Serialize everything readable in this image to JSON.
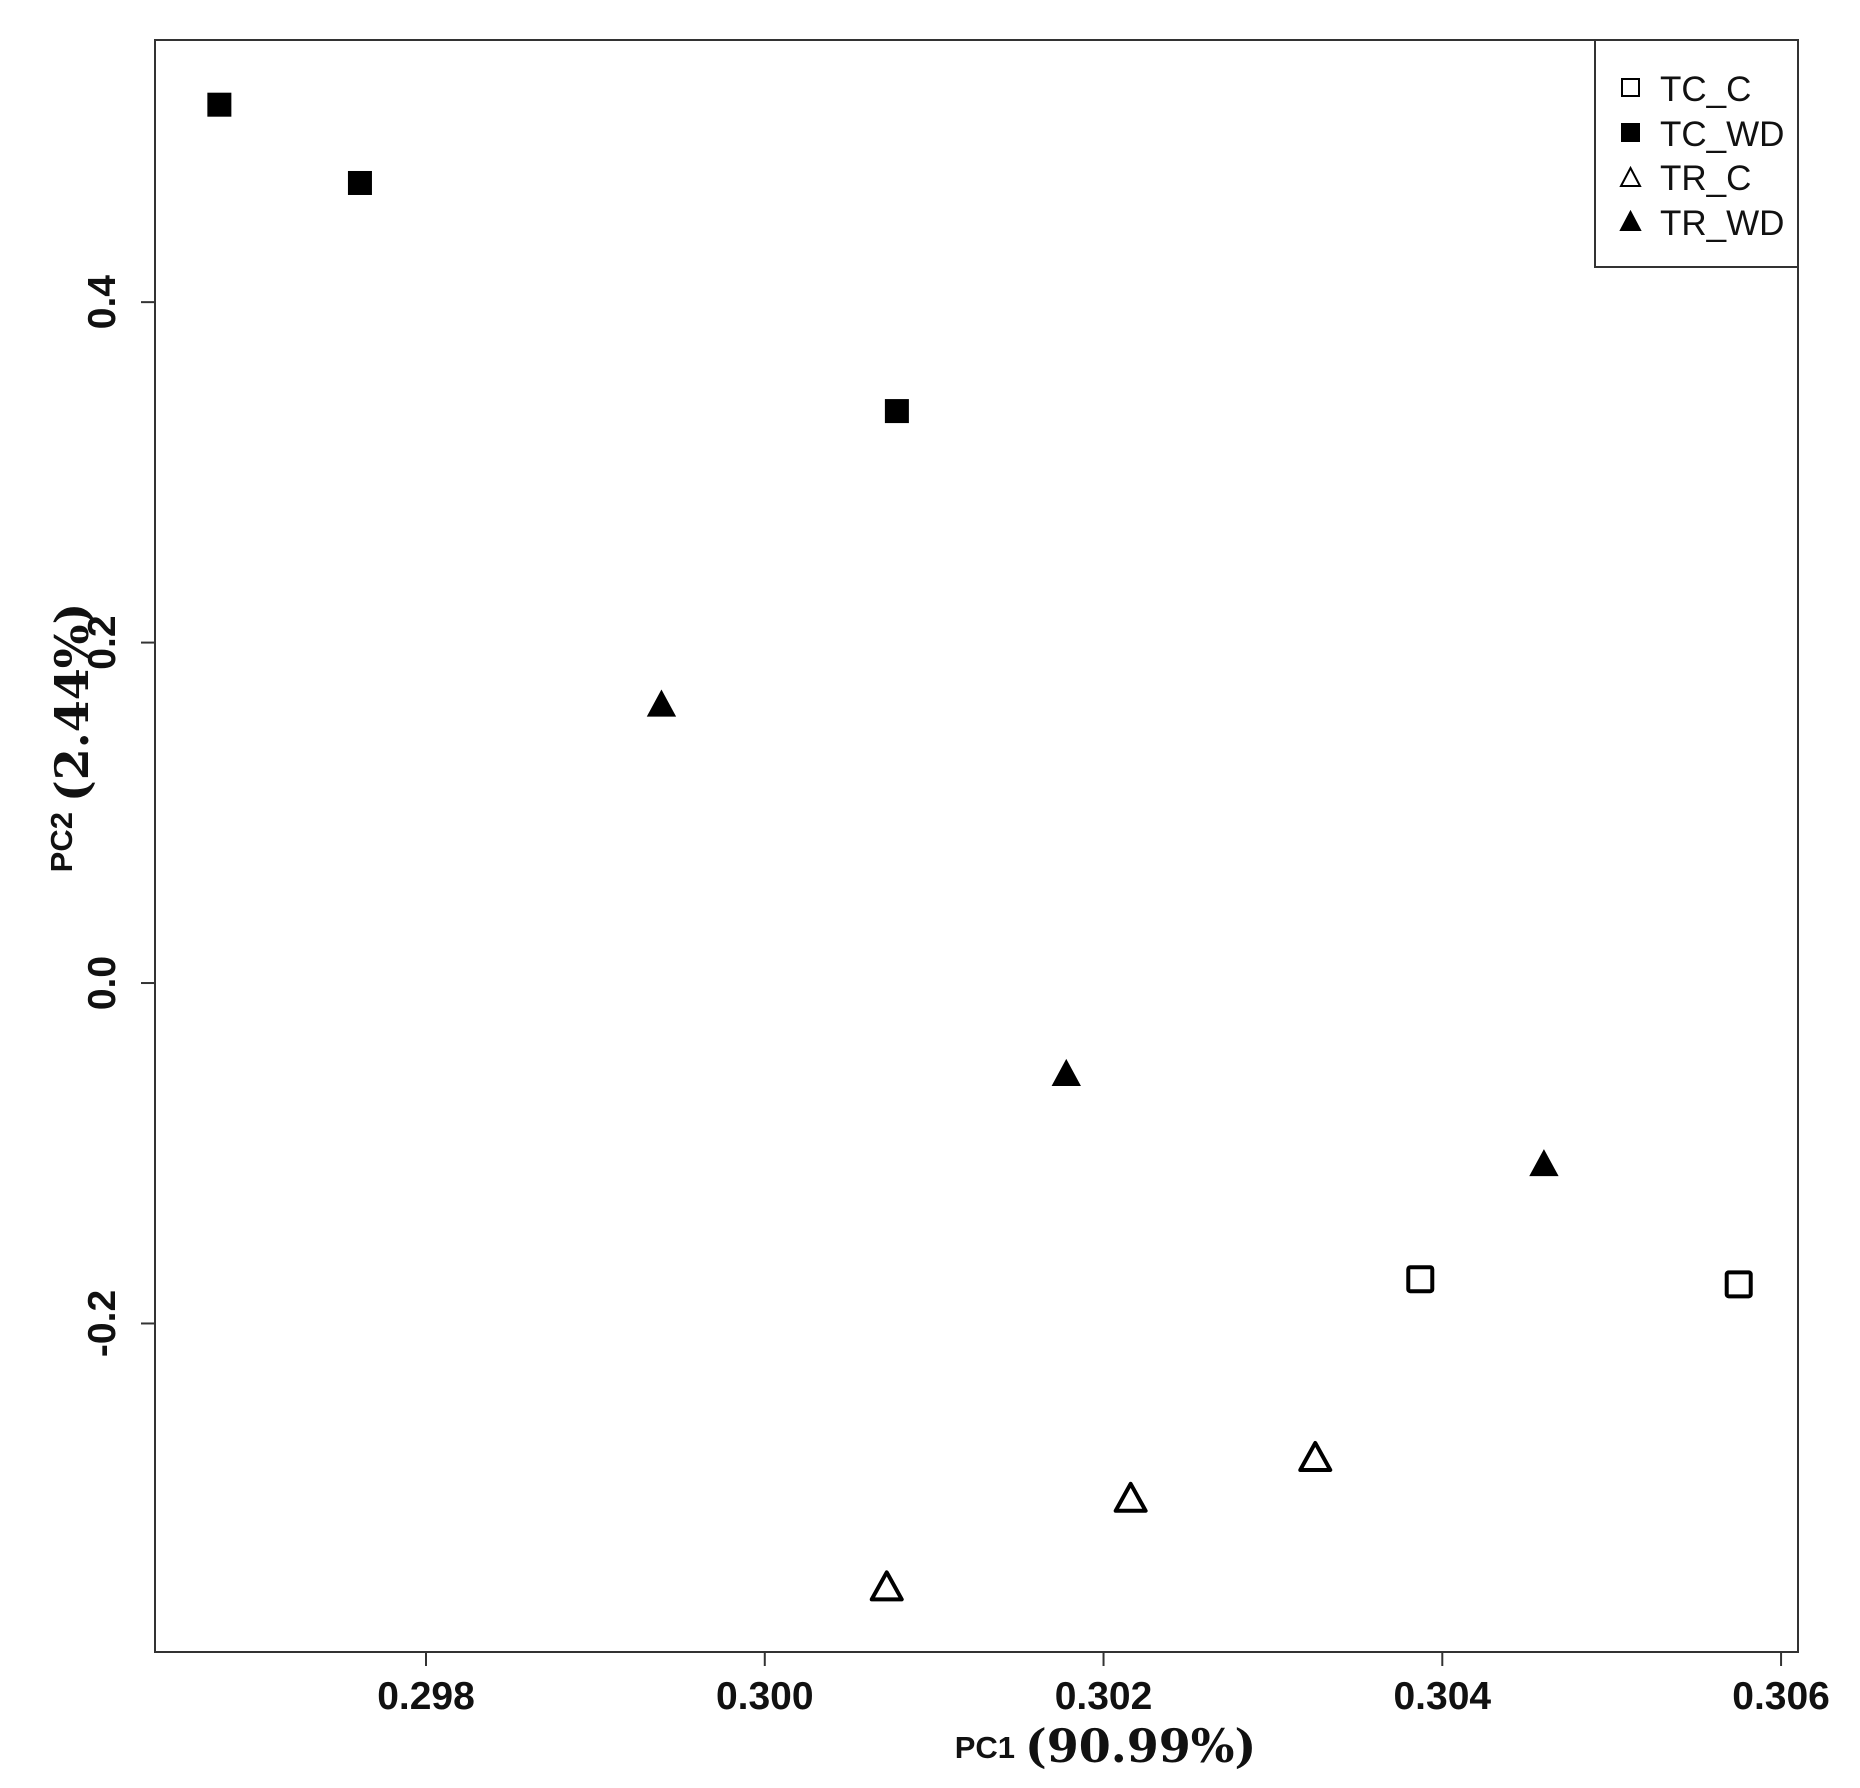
{
  "chart_data": {
    "type": "scatter",
    "xlabel": "PC1",
    "xlabel_pct": "(90.99%)",
    "ylabel": "PC2",
    "ylabel_pct": "(2.44%)",
    "xlim": [
      0.2964,
      0.3061
    ],
    "ylim": [
      -0.393,
      0.554
    ],
    "x_ticks": [
      {
        "value": 0.298,
        "label": "0.298"
      },
      {
        "value": 0.3,
        "label": "0.300"
      },
      {
        "value": 0.302,
        "label": "0.302"
      },
      {
        "value": 0.304,
        "label": "0.304"
      },
      {
        "value": 0.306,
        "label": "0.306"
      }
    ],
    "y_ticks": [
      {
        "value": -0.2,
        "label": "-0.2"
      },
      {
        "value": 0.0,
        "label": "0.0"
      },
      {
        "value": 0.2,
        "label": "0.2"
      },
      {
        "value": 0.4,
        "label": "0.4"
      }
    ],
    "grid": false,
    "legend_position": "top-right",
    "series": [
      {
        "name": "TC_C",
        "marker": "square-open",
        "points": [
          {
            "x": 0.30387,
            "y": -0.174
          },
          {
            "x": 0.30575,
            "y": -0.177
          }
        ]
      },
      {
        "name": "TC_WD",
        "marker": "square-filled",
        "points": [
          {
            "x": 0.29678,
            "y": 0.516
          },
          {
            "x": 0.29761,
            "y": 0.47
          },
          {
            "x": 0.30078,
            "y": 0.336
          }
        ]
      },
      {
        "name": "TR_C",
        "marker": "triangle-open",
        "points": [
          {
            "x": 0.30072,
            "y": -0.355
          },
          {
            "x": 0.30216,
            "y": -0.303
          },
          {
            "x": 0.30325,
            "y": -0.279
          }
        ]
      },
      {
        "name": "TR_WD",
        "marker": "triangle-filled",
        "points": [
          {
            "x": 0.29939,
            "y": 0.163
          },
          {
            "x": 0.30178,
            "y": -0.054
          },
          {
            "x": 0.3046,
            "y": -0.107
          }
        ]
      }
    ]
  }
}
